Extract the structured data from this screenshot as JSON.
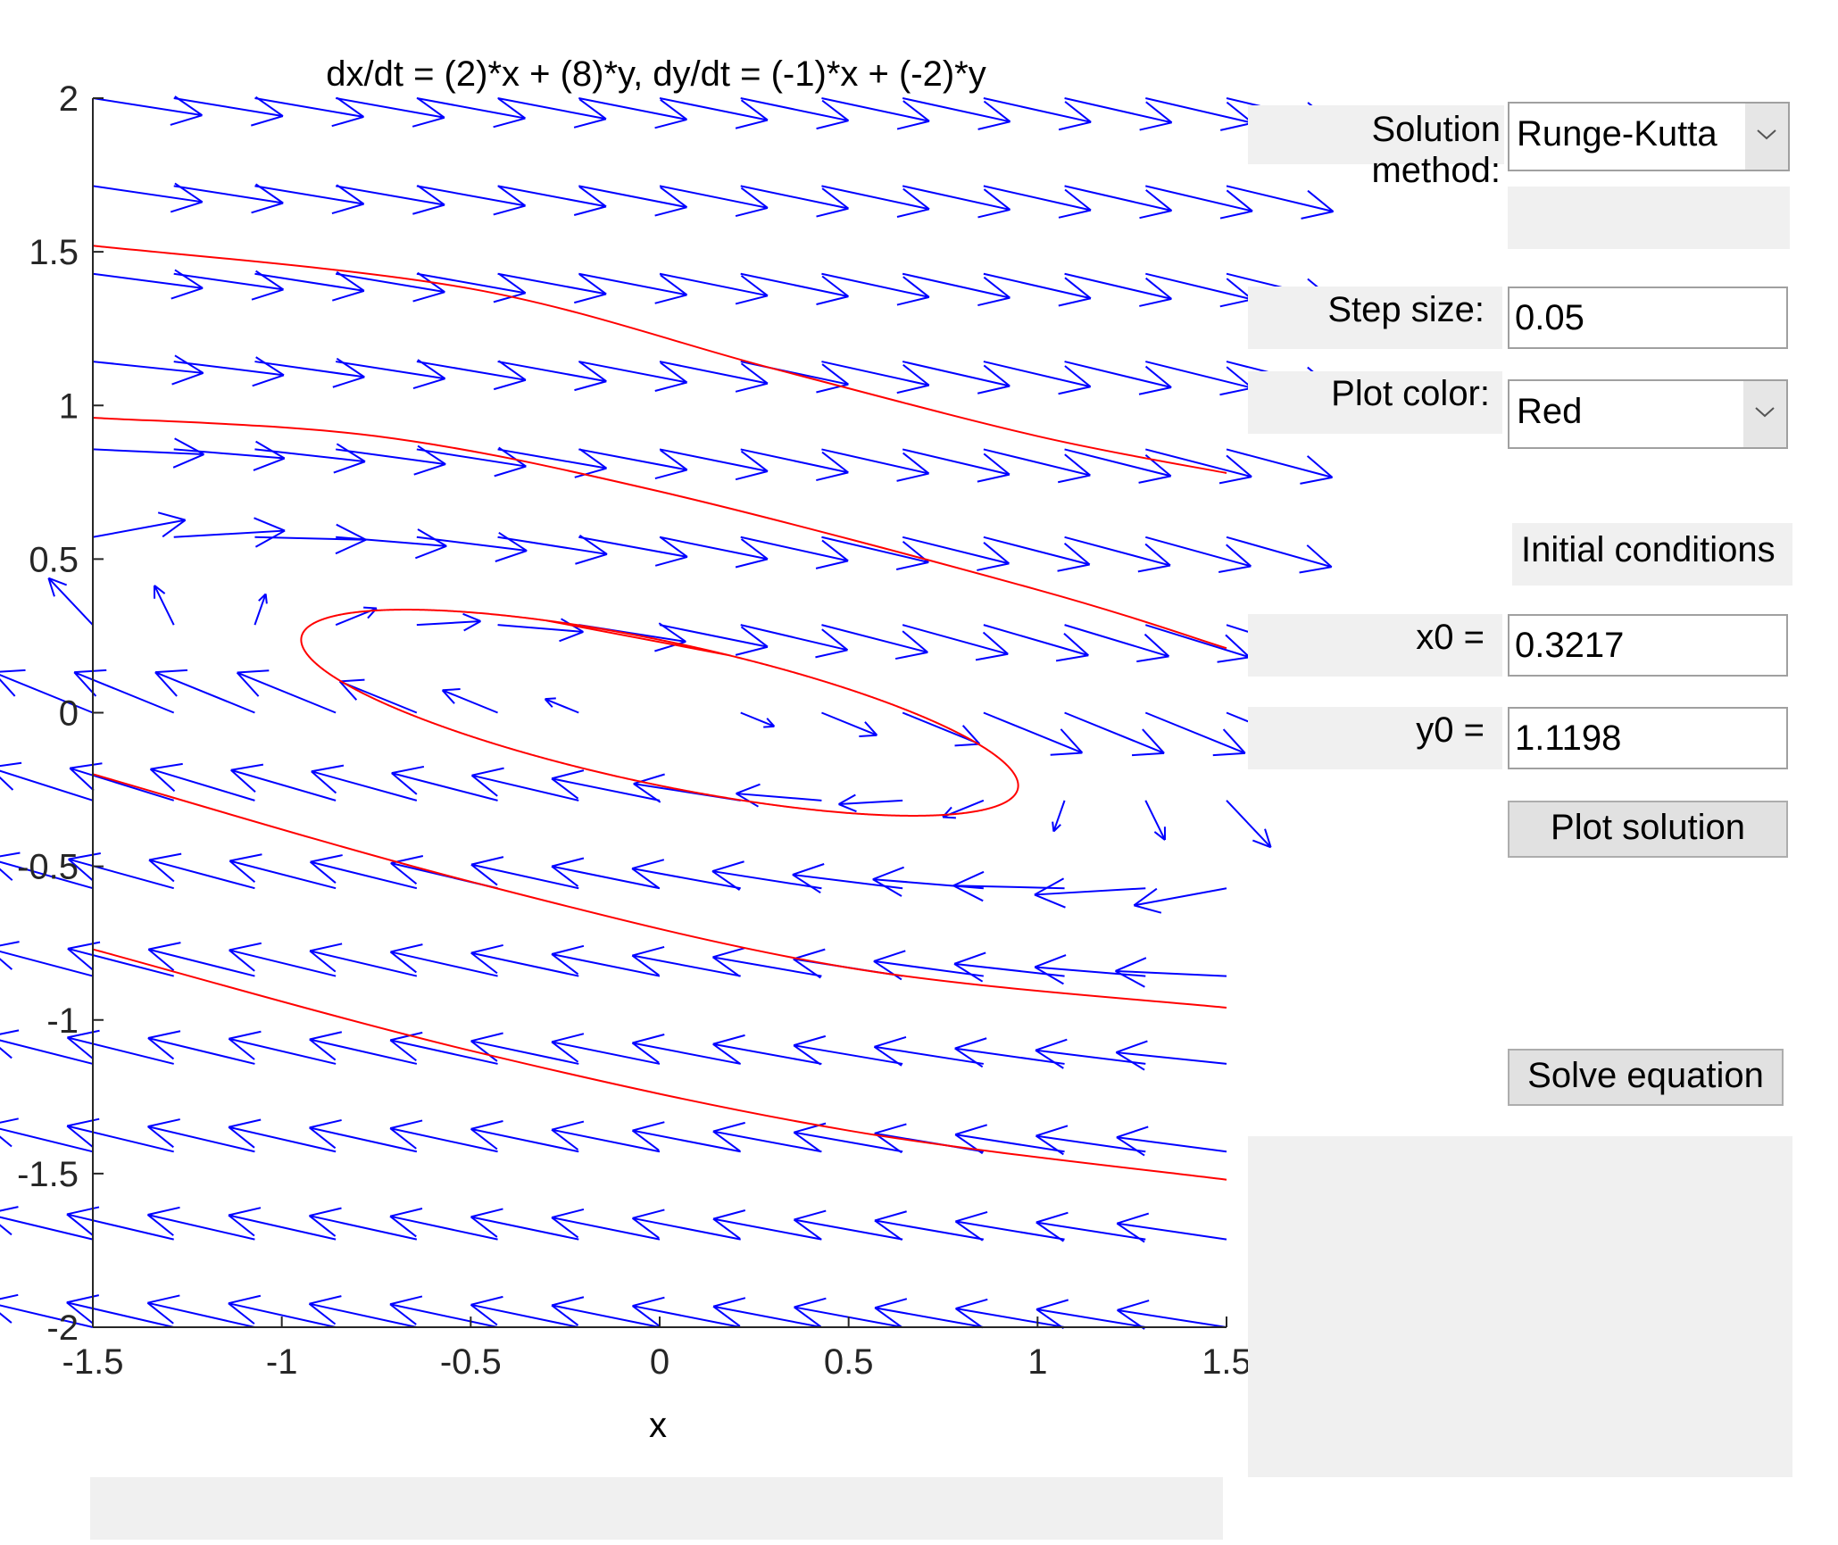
{
  "chart_data": {
    "type": "line",
    "title": "dx/dt = (2)*x + (8)*y, dy/dt = (-1)*x + (-2)*y",
    "xlabel": "x",
    "ylabel": "",
    "xlim": [
      -1.5,
      1.5
    ],
    "ylim": [
      -2,
      2
    ],
    "xticks": [
      "-1.5",
      "-1",
      "-0.5",
      "0",
      "0.5",
      "1",
      "1.5"
    ],
    "yticks": [
      "-2",
      "-1.5",
      "-1",
      "-0.5",
      "0",
      "0.5",
      "1",
      "1.5",
      "2"
    ],
    "grid": false,
    "vector_field": {
      "a": 2,
      "b": 8,
      "c": -1,
      "d": -2,
      "color": "#0000ff",
      "x_points": 15,
      "y_points": 15
    },
    "series": [
      {
        "color": "#ff0000",
        "points": [
          [
            -1.5,
            1.52
          ],
          [
            -0.5,
            1.38
          ],
          [
            0.3,
            1.12
          ],
          [
            1.0,
            0.9
          ],
          [
            1.5,
            0.78
          ]
        ]
      },
      {
        "color": "#ff0000",
        "points": [
          [
            -1.5,
            0.96
          ],
          [
            -0.75,
            0.9
          ],
          [
            0.0,
            0.72
          ],
          [
            1.0,
            0.4
          ],
          [
            1.5,
            0.21
          ]
        ]
      },
      {
        "color": "#ff0000",
        "points": [
          [
            -1.5,
            -0.2
          ],
          [
            -0.5,
            -0.55
          ],
          [
            0.5,
            -0.83
          ],
          [
            1.5,
            -0.96
          ]
        ]
      },
      {
        "color": "#ff0000",
        "points": [
          [
            -1.5,
            -0.77
          ],
          [
            -0.5,
            -1.1
          ],
          [
            0.5,
            -1.36
          ],
          [
            1.5,
            -1.52
          ]
        ]
      },
      {
        "color": "#ff0000",
        "closed_orbit_x0": -0.3,
        "closed_orbit_y0": 0.3
      }
    ]
  },
  "controls": {
    "solution_method_label": "Solution method:",
    "solution_method_value": "Runge-Kutta",
    "step_size_label": "Step size:",
    "step_size_value": "0.05",
    "plot_color_label": "Plot color:",
    "plot_color_value": "Red",
    "initial_conditions_label": "Initial conditions",
    "x0_label": "x0 =",
    "x0_value": "0.3217",
    "y0_label": "y0 =",
    "y0_value": "1.1198",
    "plot_solution_button": "Plot solution",
    "solve_equation_button": "Solve equation"
  },
  "colors": {
    "field": "#0000ff",
    "solution": "#ff0000",
    "panel": "#f0f0f0"
  }
}
